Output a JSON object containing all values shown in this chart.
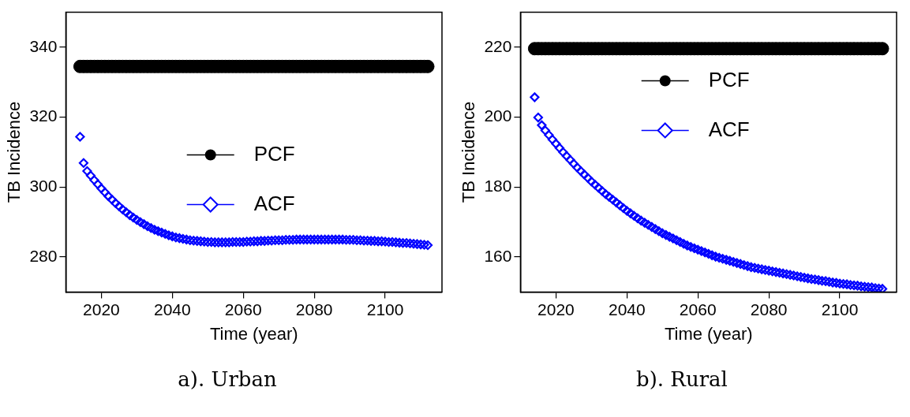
{
  "chart_data": [
    {
      "type": "scatter",
      "xlabel": "Time (year)",
      "ylabel": "TB Incidence",
      "annotations": [
        "a). Urban"
      ],
      "legend": "center",
      "x": [
        2014,
        2015,
        2016,
        2017,
        2018,
        2019,
        2020,
        2021,
        2022,
        2023,
        2024,
        2025,
        2026,
        2027,
        2028,
        2029,
        2030,
        2031,
        2032,
        2033,
        2034,
        2035,
        2036,
        2037,
        2038,
        2039,
        2040,
        2041,
        2042,
        2043,
        2044,
        2045,
        2046,
        2047,
        2048,
        2049,
        2050,
        2051,
        2052,
        2053,
        2054,
        2055,
        2056,
        2057,
        2058,
        2059,
        2060,
        2061,
        2062,
        2063,
        2064,
        2065,
        2066,
        2067,
        2068,
        2069,
        2070,
        2071,
        2072,
        2073,
        2074,
        2075,
        2076,
        2077,
        2078,
        2079,
        2080,
        2081,
        2082,
        2083,
        2084,
        2085,
        2086,
        2087,
        2088,
        2089,
        2090,
        2091,
        2092,
        2093,
        2094,
        2095,
        2096,
        2097,
        2098,
        2099,
        2100,
        2101,
        2102,
        2103,
        2104,
        2105,
        2106,
        2107,
        2108,
        2109,
        2110,
        2111,
        2112
      ],
      "series": [
        {
          "name": "PCF",
          "color": "#000000",
          "marker": "circle",
          "values": [
            334.5,
            334.5,
            334.5,
            334.5,
            334.5,
            334.5,
            334.5,
            334.5,
            334.5,
            334.5,
            334.5,
            334.5,
            334.5,
            334.5,
            334.5,
            334.5,
            334.5,
            334.5,
            334.5,
            334.5,
            334.5,
            334.5,
            334.5,
            334.5,
            334.5,
            334.5,
            334.5,
            334.5,
            334.5,
            334.5,
            334.5,
            334.5,
            334.5,
            334.5,
            334.5,
            334.5,
            334.5,
            334.5,
            334.5,
            334.5,
            334.5,
            334.5,
            334.5,
            334.5,
            334.5,
            334.5,
            334.5,
            334.5,
            334.5,
            334.5,
            334.5,
            334.5,
            334.5,
            334.5,
            334.5,
            334.5,
            334.5,
            334.5,
            334.5,
            334.5,
            334.5,
            334.5,
            334.5,
            334.5,
            334.5,
            334.5,
            334.5,
            334.5,
            334.5,
            334.5,
            334.5,
            334.5,
            334.5,
            334.5,
            334.5,
            334.5,
            334.5,
            334.5,
            334.5,
            334.5,
            334.5,
            334.5,
            334.5,
            334.5,
            334.5,
            334.5,
            334.5,
            334.5,
            334.5,
            334.5,
            334.5,
            334.5,
            334.5,
            334.5,
            334.5,
            334.5,
            334.5,
            334.5,
            334.5
          ]
        },
        {
          "name": "ACF",
          "color": "#0000ff",
          "marker": "diamond",
          "values": [
            314.4,
            306.9,
            304.6,
            303.3,
            302.0,
            300.8,
            299.6,
            298.5,
            297.4,
            296.4,
            295.4,
            294.5,
            293.6,
            292.8,
            292.0,
            291.3,
            290.6,
            290.0,
            289.4,
            288.8,
            288.3,
            287.8,
            287.4,
            287.0,
            286.6,
            286.2,
            285.9,
            285.6,
            285.4,
            285.2,
            285.0,
            284.8,
            284.7,
            284.6,
            284.5,
            284.4,
            284.3,
            284.3,
            284.2,
            284.2,
            284.2,
            284.2,
            284.2,
            284.3,
            284.3,
            284.3,
            284.3,
            284.4,
            284.4,
            284.5,
            284.5,
            284.6,
            284.6,
            284.7,
            284.7,
            284.8,
            284.8,
            284.8,
            284.9,
            284.9,
            284.9,
            285.0,
            285.0,
            285.0,
            285.0,
            285.0,
            285.0,
            285.0,
            285.0,
            285.0,
            285.0,
            285.0,
            285.0,
            285.0,
            285.0,
            284.9,
            284.9,
            284.9,
            284.8,
            284.8,
            284.7,
            284.7,
            284.6,
            284.6,
            284.5,
            284.5,
            284.4,
            284.3,
            284.3,
            284.2,
            284.1,
            284.0,
            284.0,
            283.9,
            283.8,
            283.7,
            283.6,
            283.5,
            283.4
          ]
        }
      ],
      "xlim": [
        2010,
        2116
      ],
      "xticks": [
        2020,
        2040,
        2060,
        2080,
        2100
      ],
      "ylim": [
        270,
        350
      ],
      "yticks": [
        280,
        300,
        320,
        340
      ]
    },
    {
      "type": "scatter",
      "xlabel": "Time (year)",
      "ylabel": "TB Incidence",
      "annotations": [
        "b). Rural"
      ],
      "legend": "top",
      "x": [
        2014,
        2015,
        2016,
        2017,
        2018,
        2019,
        2020,
        2021,
        2022,
        2023,
        2024,
        2025,
        2026,
        2027,
        2028,
        2029,
        2030,
        2031,
        2032,
        2033,
        2034,
        2035,
        2036,
        2037,
        2038,
        2039,
        2040,
        2041,
        2042,
        2043,
        2044,
        2045,
        2046,
        2047,
        2048,
        2049,
        2050,
        2051,
        2052,
        2053,
        2054,
        2055,
        2056,
        2057,
        2058,
        2059,
        2060,
        2061,
        2062,
        2063,
        2064,
        2065,
        2066,
        2067,
        2068,
        2069,
        2070,
        2071,
        2072,
        2073,
        2074,
        2075,
        2076,
        2077,
        2078,
        2079,
        2080,
        2081,
        2082,
        2083,
        2084,
        2085,
        2086,
        2087,
        2088,
        2089,
        2090,
        2091,
        2092,
        2093,
        2094,
        2095,
        2096,
        2097,
        2098,
        2099,
        2100,
        2101,
        2102,
        2103,
        2104,
        2105,
        2106,
        2107,
        2108,
        2109,
        2110,
        2111,
        2112
      ],
      "series": [
        {
          "name": "PCF",
          "color": "#000000",
          "marker": "circle",
          "values": [
            219.6,
            219.6,
            219.6,
            219.6,
            219.6,
            219.6,
            219.6,
            219.6,
            219.6,
            219.6,
            219.6,
            219.6,
            219.6,
            219.6,
            219.6,
            219.6,
            219.6,
            219.6,
            219.6,
            219.6,
            219.6,
            219.6,
            219.6,
            219.6,
            219.6,
            219.6,
            219.6,
            219.6,
            219.6,
            219.6,
            219.6,
            219.6,
            219.6,
            219.6,
            219.6,
            219.6,
            219.6,
            219.6,
            219.6,
            219.6,
            219.6,
            219.6,
            219.6,
            219.6,
            219.6,
            219.6,
            219.6,
            219.6,
            219.6,
            219.6,
            219.6,
            219.6,
            219.6,
            219.6,
            219.6,
            219.6,
            219.6,
            219.6,
            219.6,
            219.6,
            219.6,
            219.6,
            219.6,
            219.6,
            219.6,
            219.6,
            219.6,
            219.6,
            219.6,
            219.6,
            219.6,
            219.6,
            219.6,
            219.6,
            219.6,
            219.6,
            219.6,
            219.6,
            219.6,
            219.6,
            219.6,
            219.6,
            219.6,
            219.6,
            219.6,
            219.6,
            219.6,
            219.6,
            219.6,
            219.6,
            219.6,
            219.6,
            219.6,
            219.6,
            219.6,
            219.6,
            219.6,
            219.6,
            219.6
          ]
        },
        {
          "name": "ACF",
          "color": "#0000ff",
          "marker": "diamond",
          "values": [
            205.7,
            199.9,
            197.7,
            196.2,
            194.9,
            193.6,
            192.4,
            191.2,
            190.0,
            188.9,
            187.8,
            186.7,
            185.6,
            184.6,
            183.6,
            182.6,
            181.6,
            180.7,
            179.8,
            178.9,
            178.0,
            177.2,
            176.4,
            175.6,
            174.8,
            174.0,
            173.2,
            172.5,
            171.8,
            171.1,
            170.4,
            169.8,
            169.2,
            168.6,
            168.0,
            167.4,
            166.8,
            166.3,
            165.8,
            165.3,
            164.8,
            164.3,
            163.8,
            163.3,
            162.9,
            162.5,
            162.1,
            161.7,
            161.3,
            160.9,
            160.5,
            160.1,
            159.8,
            159.5,
            159.2,
            158.9,
            158.6,
            158.3,
            158.0,
            157.7,
            157.4,
            157.1,
            156.9,
            156.7,
            156.5,
            156.3,
            156.1,
            155.9,
            155.7,
            155.5,
            155.3,
            155.1,
            154.9,
            154.7,
            154.5,
            154.3,
            154.1,
            153.9,
            153.7,
            153.6,
            153.4,
            153.2,
            153.1,
            152.9,
            152.7,
            152.6,
            152.4,
            152.3,
            152.2,
            152.0,
            151.9,
            151.8,
            151.6,
            151.5,
            151.4,
            151.3,
            151.1,
            151.0,
            150.9
          ]
        }
      ],
      "xlim": [
        2010,
        2116
      ],
      "xticks": [
        2020,
        2040,
        2060,
        2080,
        2100
      ],
      "ylim": [
        150,
        230
      ],
      "yticks": [
        160,
        180,
        200,
        220
      ]
    }
  ]
}
